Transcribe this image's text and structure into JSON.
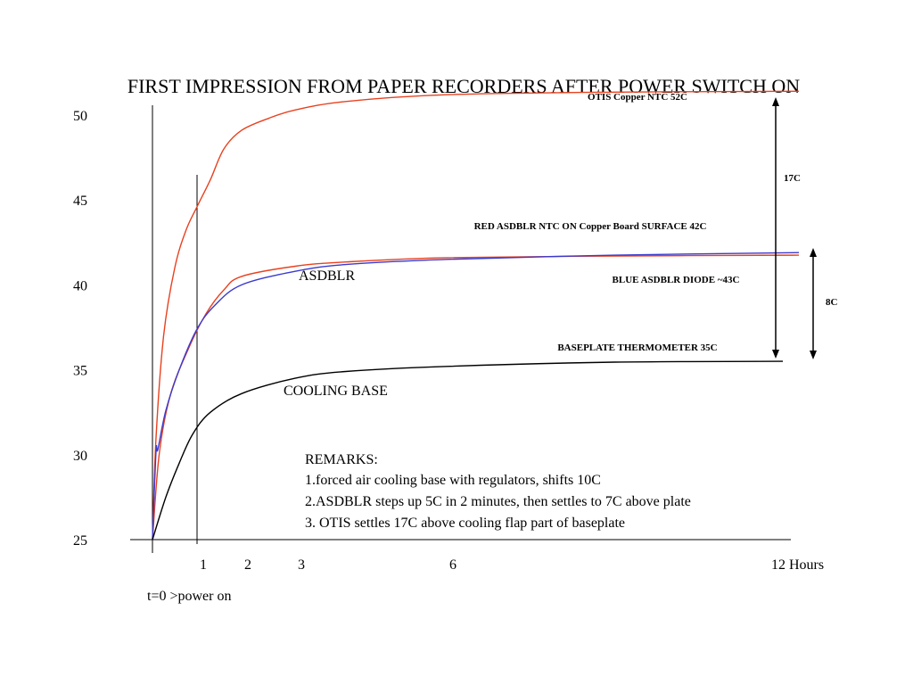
{
  "chart_data": {
    "type": "line",
    "title": "FIRST IMPRESSION FROM PAPER RECORDERS AFTER POWER SWITCH ON",
    "x_tick_labels": [
      "1",
      "2",
      "3",
      "6",
      "12 Hours"
    ],
    "x_tick_positions": [
      1,
      2,
      3,
      6,
      12
    ],
    "y_ticks": [
      25,
      30,
      35,
      40,
      45,
      50
    ],
    "ylim": [
      25,
      50
    ],
    "series": [
      {
        "name": "OTIS Copper NTC 52C",
        "color": "#e8411f",
        "points": [
          [
            0,
            25
          ],
          [
            0.08,
            31
          ],
          [
            0.25,
            37
          ],
          [
            0.5,
            41
          ],
          [
            0.75,
            43.2
          ],
          [
            1,
            44.6
          ],
          [
            1.3,
            46.2
          ],
          [
            1.6,
            48
          ],
          [
            2,
            49.1
          ],
          [
            2.5,
            49.8
          ],
          [
            3,
            50.3
          ],
          [
            4,
            50.8
          ],
          [
            6,
            51.2
          ],
          [
            9,
            51.35
          ],
          [
            12.5,
            51.4
          ]
        ]
      },
      {
        "name": "RED ASDBLR NTC ON Copper Board  SURFACE 42C",
        "color": "#e8411f",
        "points": [
          [
            0,
            25
          ],
          [
            0.15,
            30
          ],
          [
            0.4,
            33.5
          ],
          [
            0.8,
            36.2
          ],
          [
            1.2,
            38.3
          ],
          [
            1.6,
            39.7
          ],
          [
            2,
            40.5
          ],
          [
            3,
            41.1
          ],
          [
            4,
            41.35
          ],
          [
            6,
            41.6
          ],
          [
            9,
            41.7
          ],
          [
            12.5,
            41.75
          ]
        ]
      },
      {
        "name": "BLUE ASDBLR  DIODE ~43C",
        "color": "#3a3ad0",
        "points": [
          [
            0,
            25
          ],
          [
            0.08,
            30.2
          ],
          [
            0.12,
            30.3
          ],
          [
            0.3,
            32.6
          ],
          [
            0.6,
            35
          ],
          [
            1,
            37.4
          ],
          [
            1.4,
            38.8
          ],
          [
            2,
            40
          ],
          [
            3,
            40.8
          ],
          [
            4,
            41.2
          ],
          [
            6,
            41.5
          ],
          [
            9,
            41.75
          ],
          [
            12.5,
            41.9
          ]
        ]
      },
      {
        "name": "BASEPLATE THERMOMETER 35C",
        "color": "#000000",
        "points": [
          [
            0,
            25
          ],
          [
            0.3,
            27.5
          ],
          [
            0.6,
            29.5
          ],
          [
            0.9,
            31.2
          ],
          [
            1.3,
            32.5
          ],
          [
            2,
            33.6
          ],
          [
            3,
            34.5
          ],
          [
            4,
            34.9
          ],
          [
            6,
            35.2
          ],
          [
            9,
            35.45
          ],
          [
            12,
            35.5
          ]
        ]
      }
    ],
    "annotations": {
      "series_labels": {
        "asdblr": "ASDBLR",
        "cooling_base": "COOLING BASE",
        "otis": "OTIS Copper NTC 52C",
        "red": "RED ASDBLR NTC ON Copper Board  SURFACE 42C",
        "blue": "BLUE ASDBLR  DIODE ~43C",
        "baseplate": "BASEPLATE THERMOMETER 35C"
      },
      "delta_17": "17C",
      "delta_8": "8C",
      "t0": "t=0 >power on",
      "remarks": [
        "REMARKS:",
        "1.forced air cooling base with regulators, shifts 10C",
        "2.ASDBLR steps up 5C in 2 minutes, then settles to 7C above plate",
        "3. OTIS settles 17C above cooling flap part of baseplate"
      ]
    }
  }
}
